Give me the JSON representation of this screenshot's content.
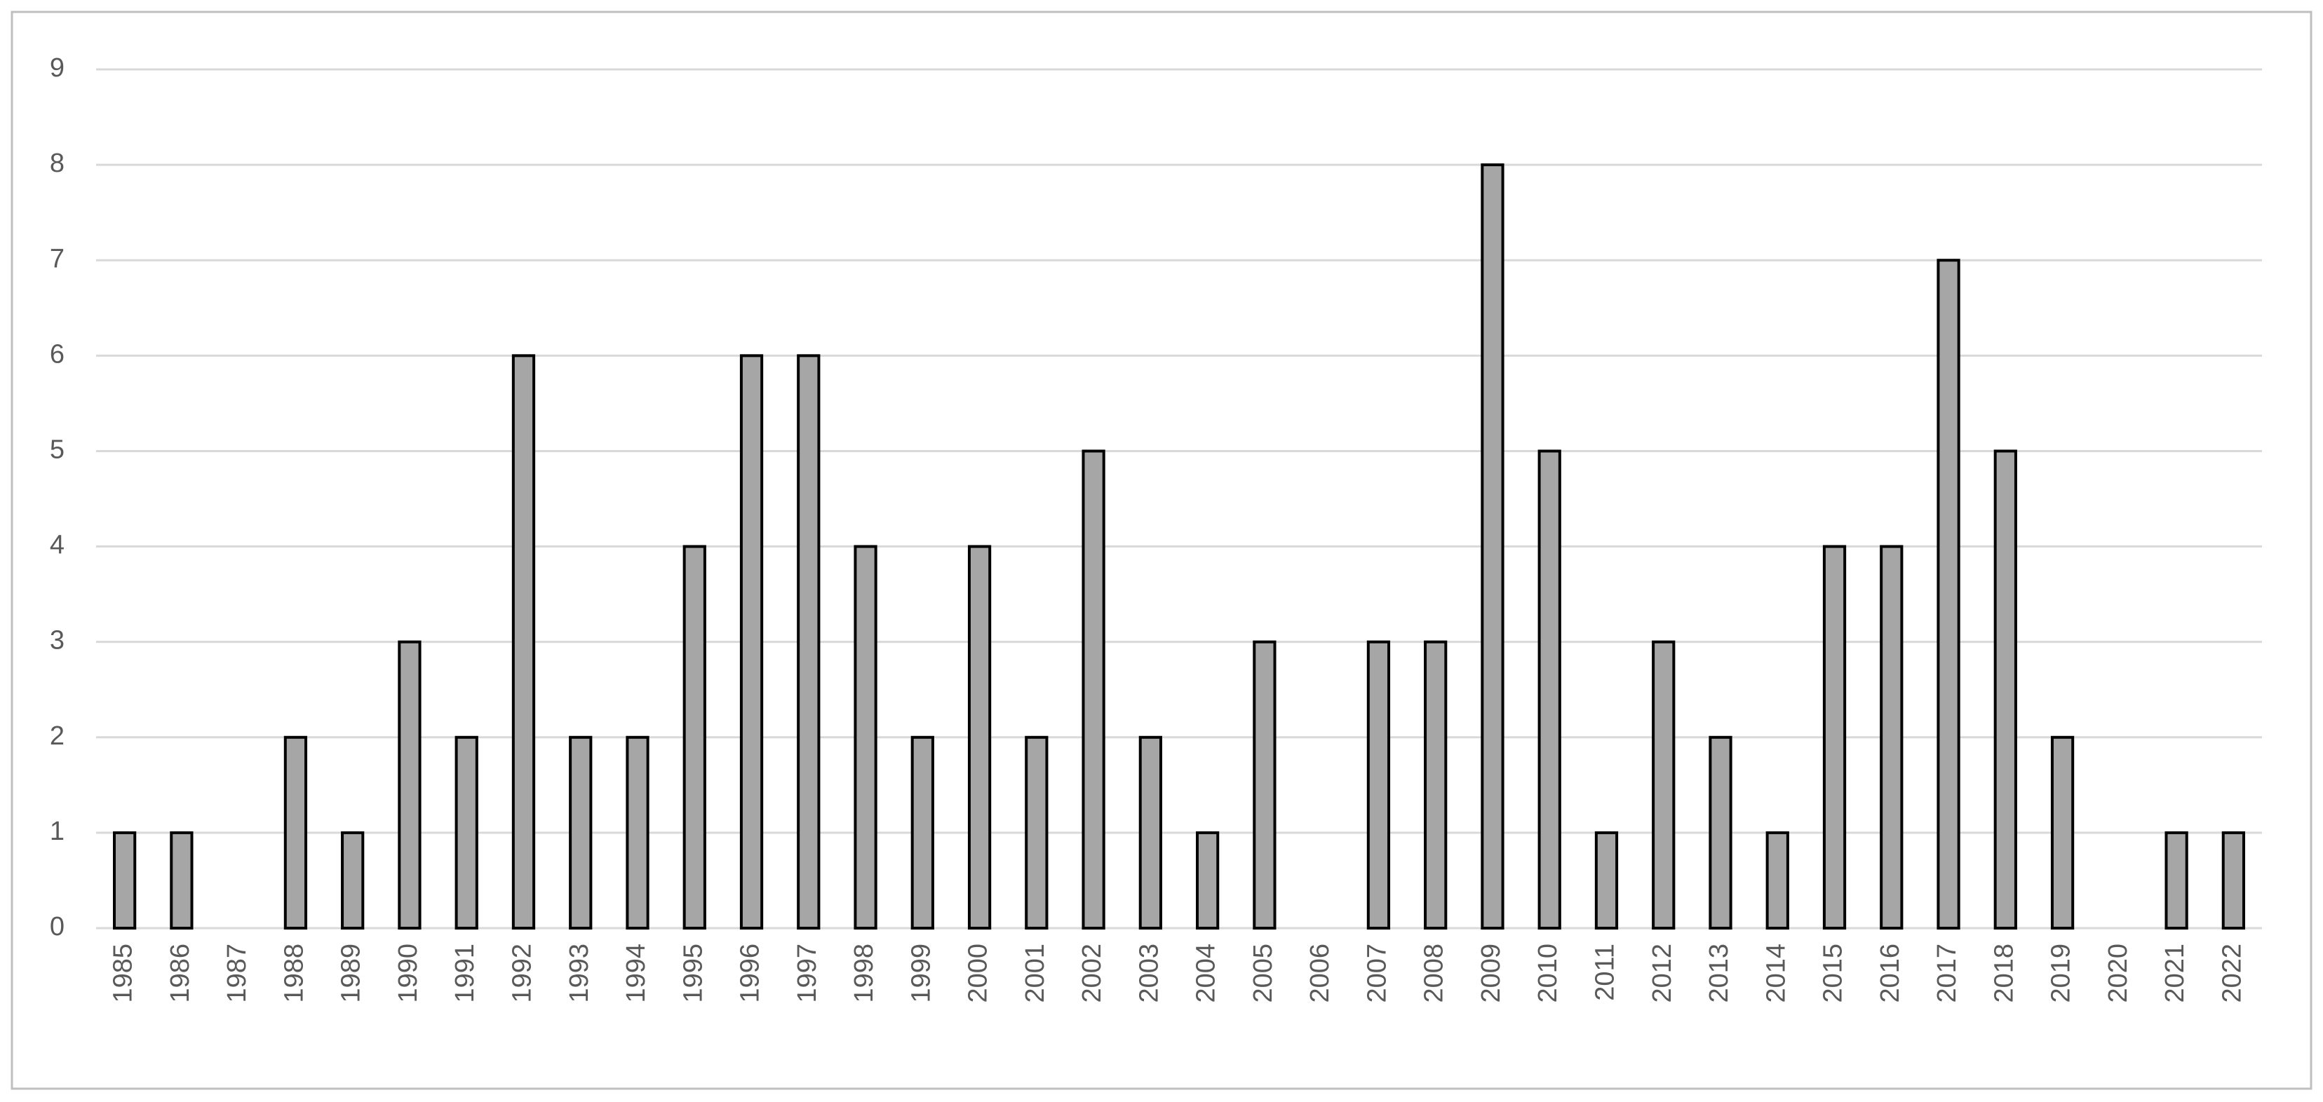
{
  "chart_data": {
    "type": "bar",
    "categories": [
      "1985",
      "1986",
      "1987",
      "1988",
      "1989",
      "1990",
      "1991",
      "1992",
      "1993",
      "1994",
      "1995",
      "1996",
      "1997",
      "1998",
      "1999",
      "2000",
      "2001",
      "2002",
      "2003",
      "2004",
      "2005",
      "2006",
      "2007",
      "2008",
      "2009",
      "2010",
      "2011",
      "2012",
      "2013",
      "2014",
      "2015",
      "2016",
      "2017",
      "2018",
      "2019",
      "2020",
      "2021",
      "2022"
    ],
    "values": [
      1,
      1,
      0,
      2,
      1,
      3,
      2,
      6,
      2,
      2,
      4,
      6,
      6,
      4,
      2,
      4,
      2,
      5,
      2,
      1,
      3,
      0,
      3,
      3,
      8,
      5,
      1,
      3,
      2,
      1,
      4,
      4,
      7,
      5,
      2,
      0,
      1,
      1
    ],
    "color": "#a6a6a6",
    "ylim": [
      0,
      9
    ],
    "yticks": [
      0,
      1,
      2,
      3,
      4,
      5,
      6,
      7,
      8,
      9
    ],
    "grid": true
  }
}
